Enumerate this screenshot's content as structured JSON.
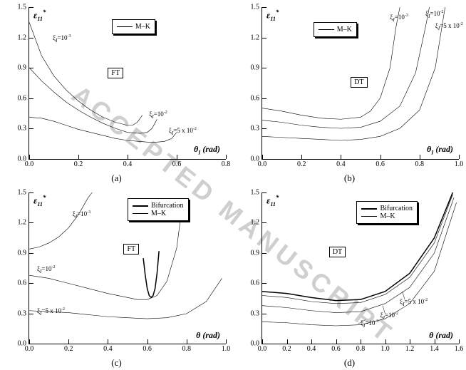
{
  "watermark_text": "ACCEPTED MANUSCRIPT",
  "background_color": "#ffffff",
  "curve_color": "#000000",
  "panels": {
    "a": {
      "sublabel": "(a)",
      "type": "line",
      "xlim": [
        0.0,
        0.8
      ],
      "ylim": [
        0.0,
        1.5
      ],
      "xtick_step": 0.2,
      "ytick_step": 0.3,
      "ylabel_html": "ε<sub>11</sub><sup>*</sup>",
      "xlabel_html": "θ<sub>I</sub> (rad)",
      "legend": {
        "left_pct": 42,
        "top_pct": 8,
        "rows": [
          {
            "thick": false,
            "label": "M–K"
          }
        ]
      },
      "tag": {
        "text": "FT",
        "left_pct": 40,
        "top_pct": 40
      },
      "annotations": [
        {
          "html": "ξ<sub>I</sub>=10<sup>-3</sup>",
          "left_pct": 12,
          "top_pct": 18
        },
        {
          "html": "ξ<sub>I</sub>=10<sup>-2</sup>",
          "left_pct": 61,
          "top_pct": 68
        },
        {
          "html": "ξ<sub>I</sub>=5 x 10<sup>-2</sup>",
          "left_pct": 71,
          "top_pct": 79
        }
      ],
      "curves": [
        {
          "thick": false,
          "pts": [
            [
              0.0,
              1.35
            ],
            [
              0.05,
              1.02
            ],
            [
              0.1,
              0.82
            ],
            [
              0.15,
              0.68
            ],
            [
              0.2,
              0.57
            ],
            [
              0.25,
              0.48
            ],
            [
              0.3,
              0.41
            ],
            [
              0.35,
              0.36
            ],
            [
              0.4,
              0.33
            ],
            [
              0.42,
              0.33
            ],
            [
              0.44,
              0.36
            ],
            [
              0.46,
              0.43
            ]
          ]
        },
        {
          "thick": false,
          "pts": [
            [
              0.0,
              0.9
            ],
            [
              0.05,
              0.77
            ],
            [
              0.1,
              0.66
            ],
            [
              0.15,
              0.56
            ],
            [
              0.2,
              0.48
            ],
            [
              0.25,
              0.41
            ],
            [
              0.3,
              0.35
            ],
            [
              0.35,
              0.3
            ],
            [
              0.4,
              0.26
            ],
            [
              0.45,
              0.25
            ],
            [
              0.48,
              0.26
            ],
            [
              0.5,
              0.3
            ],
            [
              0.52,
              0.39
            ]
          ]
        },
        {
          "thick": false,
          "pts": [
            [
              0.0,
              0.41
            ],
            [
              0.05,
              0.4
            ],
            [
              0.1,
              0.37
            ],
            [
              0.15,
              0.33
            ],
            [
              0.2,
              0.29
            ],
            [
              0.25,
              0.26
            ],
            [
              0.3,
              0.23
            ],
            [
              0.35,
              0.2
            ],
            [
              0.4,
              0.18
            ],
            [
              0.45,
              0.17
            ],
            [
              0.5,
              0.16
            ],
            [
              0.55,
              0.17
            ],
            [
              0.58,
              0.2
            ],
            [
              0.6,
              0.26
            ]
          ]
        }
      ]
    },
    "b": {
      "sublabel": "(b)",
      "type": "line",
      "xlim": [
        0.0,
        1.0
      ],
      "ylim": [
        0.0,
        1.5
      ],
      "xtick_step": 0.2,
      "ytick_step": 0.3,
      "ylabel_html": "ε<sub>11</sub><sup>*</sup>",
      "xlabel_html": "θ<sub>I</sub> (rad)",
      "legend": {
        "left_pct": 26,
        "top_pct": 10,
        "rows": [
          {
            "thick": false,
            "label": "M–K"
          }
        ]
      },
      "tag": {
        "text": "DT",
        "left_pct": 45,
        "top_pct": 46
      },
      "annotations": [
        {
          "html": "ξ<sub>I</sub>=10<sup>-3</sup>",
          "left_pct": 65,
          "top_pct": 4
        },
        {
          "html": "ξ<sub>I</sub>=10<sup>-2</sup>",
          "left_pct": 83,
          "top_pct": 2
        },
        {
          "html": "ξ<sub>I</sub>=5 x 10<sup>-2</sup>",
          "left_pct": 88,
          "top_pct": 10
        }
      ],
      "curves": [
        {
          "thick": false,
          "pts": [
            [
              0.0,
              0.5
            ],
            [
              0.1,
              0.47
            ],
            [
              0.2,
              0.43
            ],
            [
              0.3,
              0.4
            ],
            [
              0.4,
              0.39
            ],
            [
              0.5,
              0.41
            ],
            [
              0.55,
              0.47
            ],
            [
              0.6,
              0.6
            ],
            [
              0.65,
              0.9
            ],
            [
              0.68,
              1.3
            ],
            [
              0.7,
              1.5
            ]
          ]
        },
        {
          "thick": false,
          "pts": [
            [
              0.0,
              0.38
            ],
            [
              0.1,
              0.36
            ],
            [
              0.2,
              0.33
            ],
            [
              0.3,
              0.31
            ],
            [
              0.4,
              0.3
            ],
            [
              0.5,
              0.31
            ],
            [
              0.6,
              0.37
            ],
            [
              0.7,
              0.52
            ],
            [
              0.78,
              0.85
            ],
            [
              0.83,
              1.3
            ],
            [
              0.85,
              1.5
            ]
          ]
        },
        {
          "thick": false,
          "pts": [
            [
              0.0,
              0.22
            ],
            [
              0.1,
              0.21
            ],
            [
              0.2,
              0.2
            ],
            [
              0.3,
              0.19
            ],
            [
              0.4,
              0.18
            ],
            [
              0.5,
              0.19
            ],
            [
              0.6,
              0.22
            ],
            [
              0.7,
              0.3
            ],
            [
              0.8,
              0.48
            ],
            [
              0.88,
              0.9
            ],
            [
              0.93,
              1.5
            ]
          ]
        }
      ]
    },
    "c": {
      "sublabel": "(c)",
      "type": "line",
      "xlim": [
        0.0,
        1.0
      ],
      "ylim": [
        0.0,
        1.5
      ],
      "xtick_step": 0.2,
      "ytick_step": 0.3,
      "ylabel_html": "ε<sub>11</sub><sup>*</sup>",
      "xlabel_html": "θ (rad)",
      "legend": {
        "left_pct": 50,
        "top_pct": 4,
        "rows": [
          {
            "thick": true,
            "label": "Bifurcation"
          },
          {
            "thick": false,
            "label": "M–K"
          }
        ]
      },
      "tag": {
        "text": "FT",
        "left_pct": 48,
        "top_pct": 34
      },
      "annotations": [
        {
          "html": "ξ<sub>I</sub>=10<sup>-3</sup>",
          "left_pct": 22,
          "top_pct": 12
        },
        {
          "html": "ξ<sub>I</sub>=10<sup>-2</sup>",
          "left_pct": 4,
          "top_pct": 48
        },
        {
          "html": "ξ<sub>I</sub>=5 x 10<sup>-2</sup>",
          "left_pct": 4,
          "top_pct": 76
        }
      ],
      "curves": [
        {
          "thick": false,
          "pts": [
            [
              0.0,
              0.94
            ],
            [
              0.05,
              0.96
            ],
            [
              0.1,
              1.0
            ],
            [
              0.15,
              1.06
            ],
            [
              0.2,
              1.15
            ],
            [
              0.25,
              1.28
            ],
            [
              0.3,
              1.45
            ],
            [
              0.32,
              1.5
            ]
          ]
        },
        {
          "thick": false,
          "pts": [
            [
              0.0,
              0.68
            ],
            [
              0.1,
              0.65
            ],
            [
              0.2,
              0.6
            ],
            [
              0.3,
              0.55
            ],
            [
              0.4,
              0.5
            ],
            [
              0.5,
              0.46
            ],
            [
              0.55,
              0.44
            ],
            [
              0.6,
              0.44
            ],
            [
              0.65,
              0.48
            ],
            [
              0.7,
              0.62
            ],
            [
              0.75,
              0.95
            ],
            [
              0.78,
              1.4
            ]
          ]
        },
        {
          "thick": false,
          "pts": [
            [
              0.0,
              0.33
            ],
            [
              0.1,
              0.32
            ],
            [
              0.2,
              0.31
            ],
            [
              0.3,
              0.29
            ],
            [
              0.4,
              0.27
            ],
            [
              0.5,
              0.26
            ],
            [
              0.6,
              0.25
            ],
            [
              0.7,
              0.26
            ],
            [
              0.8,
              0.3
            ],
            [
              0.9,
              0.42
            ],
            [
              0.98,
              0.65
            ]
          ]
        },
        {
          "thick": true,
          "pts": [
            [
              0.58,
              0.85
            ],
            [
              0.59,
              0.68
            ],
            [
              0.6,
              0.55
            ],
            [
              0.61,
              0.48
            ],
            [
              0.62,
              0.46
            ],
            [
              0.63,
              0.48
            ],
            [
              0.64,
              0.55
            ],
            [
              0.65,
              0.7
            ],
            [
              0.66,
              0.92
            ]
          ]
        }
      ]
    },
    "d": {
      "sublabel": "(d)",
      "type": "line",
      "xlim": [
        0.0,
        1.6
      ],
      "ylim": [
        0.0,
        1.5
      ],
      "xtick_step": 0.2,
      "ytick_step": 0.3,
      "ylabel_html": "ε<sub>11</sub><sup>*</sup>",
      "xlabel_html": "θ (rad)",
      "legend": {
        "left_pct": 48,
        "top_pct": 6,
        "rows": [
          {
            "thick": true,
            "label": "Bifurcation"
          },
          {
            "thick": false,
            "label": "M–K"
          }
        ]
      },
      "tag": {
        "text": "DT",
        "left_pct": 34,
        "top_pct": 36
      },
      "annotations": [
        {
          "html": "ξ<sub>I</sub>=10<sup>-3</sup>",
          "left_pct": 50,
          "top_pct": 84
        },
        {
          "html": "ξ<sub>I</sub>=10<sup>-2</sup>",
          "left_pct": 60,
          "top_pct": 79
        },
        {
          "html": "ξ<sub>I</sub>=5 x 10<sup>-2</sup>",
          "left_pct": 70,
          "top_pct": 70
        }
      ],
      "curves": [
        {
          "thick": true,
          "pts": [
            [
              0.0,
              0.52
            ],
            [
              0.2,
              0.5
            ],
            [
              0.4,
              0.46
            ],
            [
              0.6,
              0.43
            ],
            [
              0.8,
              0.44
            ],
            [
              1.0,
              0.52
            ],
            [
              1.2,
              0.7
            ],
            [
              1.4,
              1.05
            ],
            [
              1.55,
              1.5
            ]
          ]
        },
        {
          "thick": false,
          "pts": [
            [
              0.0,
              0.48
            ],
            [
              0.2,
              0.46
            ],
            [
              0.4,
              0.42
            ],
            [
              0.6,
              0.4
            ],
            [
              0.8,
              0.41
            ],
            [
              1.0,
              0.49
            ],
            [
              1.2,
              0.66
            ],
            [
              1.4,
              1.0
            ],
            [
              1.55,
              1.48
            ]
          ]
        },
        {
          "thick": false,
          "pts": [
            [
              0.0,
              0.38
            ],
            [
              0.2,
              0.36
            ],
            [
              0.4,
              0.33
            ],
            [
              0.6,
              0.31
            ],
            [
              0.8,
              0.32
            ],
            [
              1.0,
              0.4
            ],
            [
              1.2,
              0.56
            ],
            [
              1.4,
              0.9
            ],
            [
              1.56,
              1.45
            ]
          ]
        },
        {
          "thick": false,
          "pts": [
            [
              0.0,
              0.22
            ],
            [
              0.2,
              0.21
            ],
            [
              0.4,
              0.19
            ],
            [
              0.6,
              0.18
            ],
            [
              0.8,
              0.19
            ],
            [
              1.0,
              0.25
            ],
            [
              1.2,
              0.4
            ],
            [
              1.4,
              0.72
            ],
            [
              1.58,
              1.4
            ]
          ]
        }
      ],
      "arrows": [
        {
          "from": [
            0.84,
            0.24
          ],
          "to": [
            0.78,
            0.2
          ]
        },
        {
          "from": [
            1.0,
            0.3
          ],
          "to": [
            0.98,
            0.38
          ]
        },
        {
          "from": [
            1.16,
            0.44
          ],
          "to": [
            1.14,
            0.52
          ]
        }
      ]
    }
  }
}
